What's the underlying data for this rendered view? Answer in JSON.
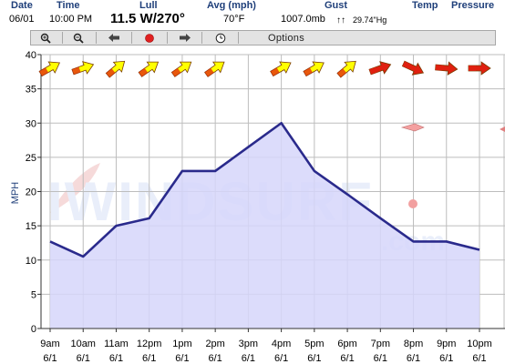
{
  "header": {
    "labels": {
      "date": "Date",
      "time": "Time",
      "lull": "Lull",
      "avg": "Avg (mph)",
      "gust": "Gust",
      "temp": "Temp",
      "pressure": "Pressure"
    },
    "values": {
      "date": "06/01",
      "time": "10:00 PM",
      "wind": "11.5 W/270°",
      "temp": "70°F",
      "pressure": "1007.0mb",
      "hg": "29.74\"Hg"
    }
  },
  "toolbar": {
    "buttons": [
      {
        "name": "zoom-in-button",
        "icon": "magnifier-plus-icon"
      },
      {
        "name": "zoom-out-button",
        "icon": "magnifier-minus-icon"
      },
      {
        "name": "back-button",
        "icon": "arrow-left-icon"
      },
      {
        "name": "record-button",
        "icon": "red-dot-icon"
      },
      {
        "name": "forward-button",
        "icon": "arrow-right-icon"
      },
      {
        "name": "clock-button",
        "icon": "clock-icon"
      }
    ],
    "options_label": "Options"
  },
  "chart_data": {
    "type": "area",
    "ylabel": "MPH",
    "ylim": [
      0,
      40
    ],
    "ytick_step": 5,
    "grid": true,
    "x": [
      "9am",
      "10am",
      "11am",
      "12pm",
      "1pm",
      "2pm",
      "3pm",
      "4pm",
      "5pm",
      "6pm",
      "7pm",
      "8pm",
      "9pm",
      "10pm"
    ],
    "x_dates": [
      "6/1",
      "6/1",
      "6/1",
      "6/1",
      "6/1",
      "6/1",
      "6/1",
      "6/1",
      "6/1",
      "6/1",
      "6/1",
      "6/1",
      "6/1",
      "6/1"
    ],
    "series": [
      {
        "values": [
          12.7,
          10.5,
          15,
          16.1,
          23,
          23,
          26.5,
          30,
          23,
          19.6,
          16.1,
          12.7,
          12.7,
          11.5
        ]
      }
    ],
    "wind_direction_markers": [
      {
        "x_index": 0,
        "direction_deg": 240,
        "speed_level": "medium"
      },
      {
        "x_index": 1,
        "direction_deg": 250,
        "speed_level": "medium"
      },
      {
        "x_index": 2,
        "direction_deg": 230,
        "speed_level": "medium"
      },
      {
        "x_index": 3,
        "direction_deg": 235,
        "speed_level": "medium"
      },
      {
        "x_index": 4,
        "direction_deg": 235,
        "speed_level": "medium"
      },
      {
        "x_index": 5,
        "direction_deg": 235,
        "speed_level": "medium"
      },
      {
        "x_index": 7,
        "direction_deg": 240,
        "speed_level": "medium"
      },
      {
        "x_index": 8,
        "direction_deg": 240,
        "speed_level": "medium"
      },
      {
        "x_index": 9,
        "direction_deg": 230,
        "speed_level": "medium"
      },
      {
        "x_index": 10,
        "direction_deg": 250,
        "speed_level": "high"
      },
      {
        "x_index": 11,
        "direction_deg": 295,
        "speed_level": "high"
      },
      {
        "x_index": 12,
        "direction_deg": 275,
        "speed_level": "high"
      },
      {
        "x_index": 13,
        "direction_deg": 270,
        "speed_level": "high"
      }
    ],
    "colors": {
      "area_fill": "#d6d6fa",
      "line": "#2a2a8c",
      "grid": "#bdbdbd",
      "arrow_yellow": "#ffff00",
      "arrow_red": "#e02010",
      "arrow_pink": "#f4a0a0"
    }
  }
}
